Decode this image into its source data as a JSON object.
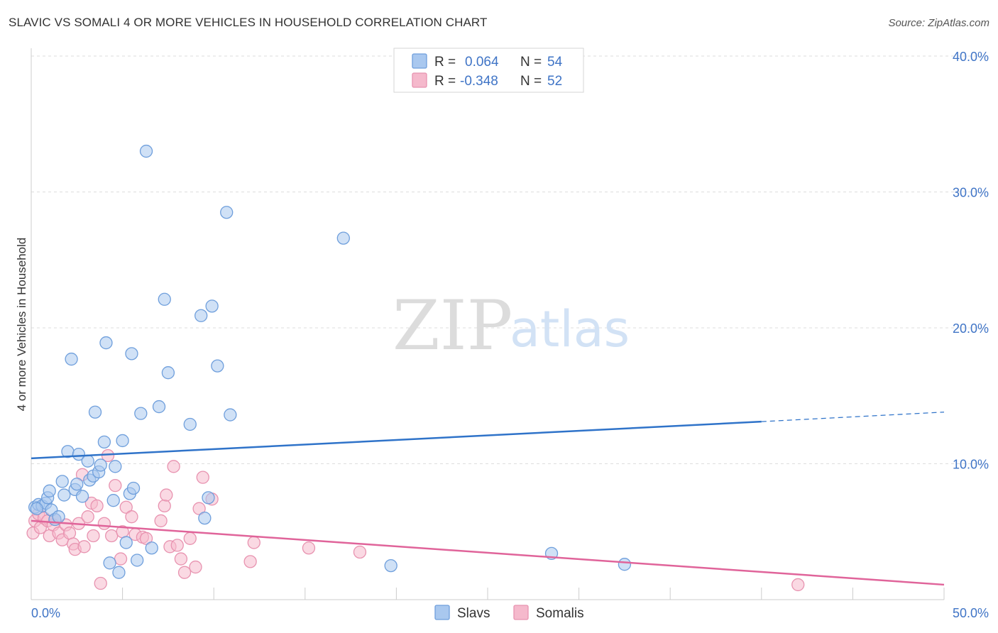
{
  "header": {
    "title": "SLAVIC VS SOMALI 4 OR MORE VEHICLES IN HOUSEHOLD CORRELATION CHART",
    "source": "Source: ZipAtlas.com"
  },
  "watermark": {
    "zip": "ZIP",
    "atlas": "atlas"
  },
  "colors": {
    "slavs_fill": "#a9c8ef",
    "slavs_stroke": "#6f9fdc",
    "slavs_line": "#2f73c9",
    "somalis_fill": "#f5b9cc",
    "somalis_stroke": "#e893b0",
    "somalis_line": "#e0649a",
    "grid": "#dddddd",
    "tick_text": "#3f74c6"
  },
  "legend": {
    "rows": [
      {
        "r_label": "R =",
        "r_value": "0.064",
        "n_label": "N =",
        "n_value": "54"
      },
      {
        "r_label": "R =",
        "r_value": "-0.348",
        "n_label": "N =",
        "n_value": "52"
      }
    ]
  },
  "chart_data": {
    "type": "scatter",
    "title": "SLAVIC VS SOMALI 4 OR MORE VEHICLES IN HOUSEHOLD CORRELATION CHART",
    "xlabel": "",
    "ylabel": "4 or more Vehicles in Household",
    "xlim": [
      0,
      50
    ],
    "ylim": [
      0,
      40
    ],
    "x_tick_labels": [
      "0.0%",
      "50.0%"
    ],
    "y_tick_values": [
      10,
      20,
      30,
      40
    ],
    "y_tick_labels": [
      "10.0%",
      "20.0%",
      "30.0%",
      "40.0%"
    ],
    "grid": true,
    "legend_position": "top-center",
    "series": [
      {
        "name": "Slavs",
        "r": 0.064,
        "n": 54,
        "trend": {
          "x0": 0,
          "y0": 10.4,
          "x1": 40,
          "y1": 13.1,
          "dash_to_x": 50,
          "dash_to_y": 13.8
        },
        "points": [
          [
            0.2,
            6.8
          ],
          [
            0.4,
            7.0
          ],
          [
            0.6,
            6.9
          ],
          [
            0.8,
            7.1
          ],
          [
            0.9,
            7.5
          ],
          [
            1.0,
            8.0
          ],
          [
            1.1,
            6.6
          ],
          [
            1.3,
            5.9
          ],
          [
            1.5,
            6.1
          ],
          [
            1.7,
            8.7
          ],
          [
            1.8,
            7.7
          ],
          [
            2.0,
            10.9
          ],
          [
            2.2,
            17.7
          ],
          [
            2.4,
            8.1
          ],
          [
            2.5,
            8.5
          ],
          [
            2.6,
            10.7
          ],
          [
            2.8,
            7.6
          ],
          [
            3.1,
            10.2
          ],
          [
            3.2,
            8.8
          ],
          [
            3.4,
            9.1
          ],
          [
            3.5,
            13.8
          ],
          [
            3.7,
            9.4
          ],
          [
            3.8,
            9.9
          ],
          [
            4.0,
            11.6
          ],
          [
            4.1,
            18.9
          ],
          [
            4.3,
            2.7
          ],
          [
            4.5,
            7.3
          ],
          [
            4.6,
            9.8
          ],
          [
            4.8,
            2.0
          ],
          [
            5.0,
            11.7
          ],
          [
            5.2,
            4.2
          ],
          [
            5.4,
            7.8
          ],
          [
            5.5,
            18.1
          ],
          [
            5.6,
            8.2
          ],
          [
            5.8,
            2.9
          ],
          [
            6.0,
            13.7
          ],
          [
            6.3,
            33.0
          ],
          [
            6.6,
            3.8
          ],
          [
            7.0,
            14.2
          ],
          [
            7.3,
            22.1
          ],
          [
            7.5,
            16.7
          ],
          [
            8.7,
            12.9
          ],
          [
            9.3,
            20.9
          ],
          [
            9.5,
            6.0
          ],
          [
            9.7,
            7.5
          ],
          [
            9.9,
            21.6
          ],
          [
            10.2,
            17.2
          ],
          [
            10.7,
            28.5
          ],
          [
            10.9,
            13.6
          ],
          [
            17.1,
            26.6
          ],
          [
            19.7,
            2.5
          ],
          [
            28.5,
            3.4
          ],
          [
            32.5,
            2.6
          ],
          [
            0.3,
            6.7
          ]
        ]
      },
      {
        "name": "Somalis",
        "r": -0.348,
        "n": 52,
        "trend": {
          "x0": 0,
          "y0": 5.8,
          "x1": 50,
          "y1": 1.1
        },
        "points": [
          [
            0.1,
            4.9
          ],
          [
            0.2,
            5.8
          ],
          [
            0.4,
            6.3
          ],
          [
            0.5,
            5.3
          ],
          [
            0.7,
            6.0
          ],
          [
            0.9,
            5.8
          ],
          [
            1.0,
            4.7
          ],
          [
            1.2,
            5.5
          ],
          [
            1.3,
            5.9
          ],
          [
            1.5,
            4.9
          ],
          [
            1.7,
            4.4
          ],
          [
            1.9,
            5.5
          ],
          [
            2.1,
            4.9
          ],
          [
            2.3,
            4.1
          ],
          [
            2.4,
            3.7
          ],
          [
            2.6,
            5.6
          ],
          [
            2.8,
            9.2
          ],
          [
            2.9,
            3.9
          ],
          [
            3.1,
            6.1
          ],
          [
            3.3,
            7.1
          ],
          [
            3.4,
            4.7
          ],
          [
            3.6,
            6.9
          ],
          [
            3.8,
            1.2
          ],
          [
            4.0,
            5.6
          ],
          [
            4.2,
            10.6
          ],
          [
            4.4,
            4.7
          ],
          [
            4.6,
            8.4
          ],
          [
            4.9,
            3.0
          ],
          [
            5.0,
            5.0
          ],
          [
            5.2,
            6.8
          ],
          [
            5.5,
            6.1
          ],
          [
            5.7,
            4.8
          ],
          [
            6.1,
            4.6
          ],
          [
            6.3,
            4.5
          ],
          [
            7.1,
            5.8
          ],
          [
            7.3,
            6.9
          ],
          [
            7.4,
            7.7
          ],
          [
            7.6,
            3.9
          ],
          [
            7.8,
            9.8
          ],
          [
            8.0,
            4.0
          ],
          [
            8.2,
            3.0
          ],
          [
            8.4,
            2.0
          ],
          [
            8.7,
            4.5
          ],
          [
            9.0,
            2.4
          ],
          [
            9.2,
            6.7
          ],
          [
            9.4,
            9.0
          ],
          [
            9.9,
            7.4
          ],
          [
            12.0,
            2.8
          ],
          [
            12.2,
            4.2
          ],
          [
            15.2,
            3.8
          ],
          [
            18.0,
            3.5
          ],
          [
            42.0,
            1.1
          ]
        ]
      }
    ]
  },
  "bottom_legend": {
    "items": [
      {
        "label": "Slavs"
      },
      {
        "label": "Somalis"
      }
    ]
  }
}
